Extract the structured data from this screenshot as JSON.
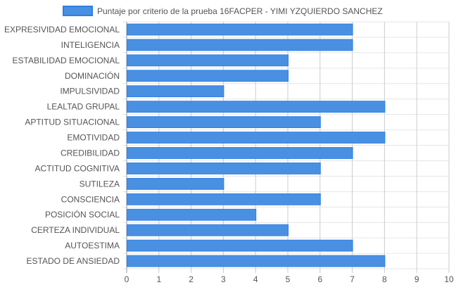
{
  "chart_data": {
    "type": "bar",
    "orientation": "horizontal",
    "categories": [
      "EXPRESIVIDAD EMOCIONAL",
      "INTELIGENCIA",
      "ESTABILIDAD EMOCIONAL",
      "DOMINACIÓN",
      "IMPULSIVIDAD",
      "LEALTAD GRUPAL",
      "APTITUD SITUACIONAL",
      "EMOTIVIDAD",
      "CREDIBILIDAD",
      "ACTITUD COGNITIVA",
      "SUTILEZA",
      "CONSCIENCIA",
      "POSICIÓN SOCIAL",
      "CERTEZA INDIVIDUAL",
      "AUTOESTIMA",
      "ESTADO DE ANSIEDAD"
    ],
    "series": [
      {
        "name": "Puntaje por criterio de la prueba 16FACPER - YIMI YZQUIERDO SANCHEZ",
        "values": [
          7,
          7,
          5,
          5,
          3,
          8,
          6,
          8,
          7,
          6,
          3,
          6,
          4,
          5,
          7,
          8
        ]
      }
    ],
    "xlim": [
      0,
      10
    ],
    "xticks": [
      "0",
      "1",
      "2",
      "3",
      "4",
      "5",
      "6",
      "7",
      "8",
      "9",
      "10"
    ],
    "grid": true,
    "legend_position": "top-center",
    "colors": {
      "bar_fill": "#4a90e2",
      "bar_stroke": "#2f7fe0",
      "grid": "#cccccc",
      "axis": "#999999",
      "text": "#555555"
    }
  }
}
